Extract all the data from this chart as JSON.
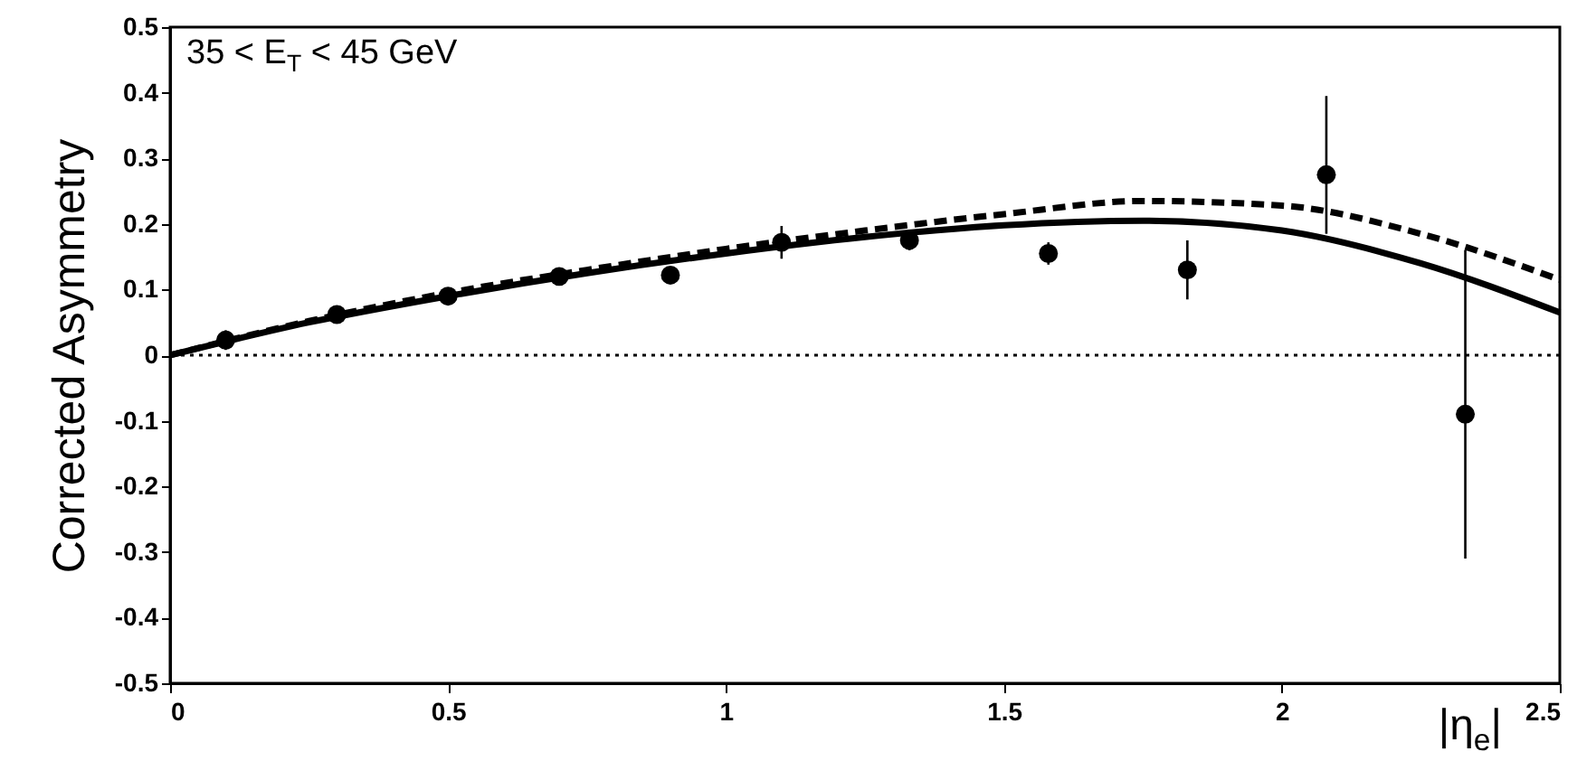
{
  "chart_data": {
    "type": "scatter",
    "ylabel": "Corrected Asymmetry",
    "xlabel": "|η$_{e}$|",
    "annotations": [
      "35 < E$_{T}$ < 45 GeV"
    ],
    "xlim": [
      0,
      2.5
    ],
    "xticks": [
      0,
      0.5,
      1,
      1.5,
      2,
      2.5
    ],
    "ylim": [
      -0.5,
      0.5
    ],
    "yticks": [
      -0.5,
      -0.4,
      -0.3,
      -0.2,
      -0.1,
      0,
      0.1,
      0.2,
      0.3,
      0.4,
      0.5
    ],
    "series": [
      {
        "color": "#000000",
        "marker": "circle",
        "x": [
          0.1,
          0.3,
          0.5,
          0.7,
          0.9,
          1.1,
          1.33,
          1.58,
          1.83,
          2.08,
          2.33
        ],
        "values": [
          0.023,
          0.062,
          0.09,
          0.12,
          0.122,
          0.172,
          0.175,
          0.155,
          0.13,
          0.275,
          -0.09
        ],
        "errors": [
          0.015,
          0.01,
          0.012,
          0.012,
          0.013,
          0.025,
          0.015,
          0.017,
          0.045,
          [
            0.185,
            0.395
          ],
          [
            -0.31,
            0.16
          ]
        ]
      },
      {
        "type": "line",
        "color": "#000000",
        "line_style": "solid",
        "x": [
          0,
          0.25,
          0.5,
          0.75,
          1,
          1.25,
          1.5,
          1.75,
          2,
          2.25,
          2.5
        ],
        "values": [
          0,
          0.05,
          0.09,
          0.125,
          0.155,
          0.18,
          0.198,
          0.205,
          0.19,
          0.14,
          0.065
        ]
      },
      {
        "type": "line",
        "color": "#000000",
        "line_style": "dashed",
        "x": [
          0,
          0.25,
          0.5,
          0.75,
          1,
          1.25,
          1.5,
          1.75,
          2,
          2.25,
          2.5
        ],
        "values": [
          0,
          0.052,
          0.095,
          0.13,
          0.162,
          0.19,
          0.215,
          0.235,
          0.228,
          0.185,
          0.115
        ]
      }
    ],
    "ref_lines": [
      {
        "axis": "y",
        "value": 0,
        "line_style": "dotted",
        "color": "#000000"
      }
    ],
    "grid": false
  }
}
